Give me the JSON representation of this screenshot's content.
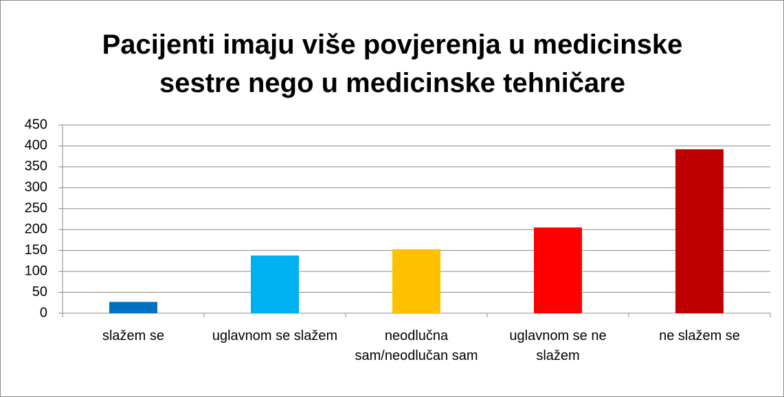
{
  "chart_data": {
    "type": "bar",
    "title": "Pacijenti imaju više povjerenja u medicinske sestre nego u medicinske tehničare",
    "categories": [
      "slažem se",
      "uglavnom se slažem",
      "neodlučna sam/neodlučan sam",
      "uglavnom se ne slažem",
      "ne slažem se"
    ],
    "values": [
      27,
      138,
      153,
      205,
      392
    ],
    "colors": [
      "#0070c0",
      "#00b0f0",
      "#ffc000",
      "#ff0000",
      "#c00000"
    ],
    "ylim": [
      0,
      450
    ],
    "yticks": [
      0,
      50,
      100,
      150,
      200,
      250,
      300,
      350,
      400,
      450
    ],
    "grid": true
  }
}
